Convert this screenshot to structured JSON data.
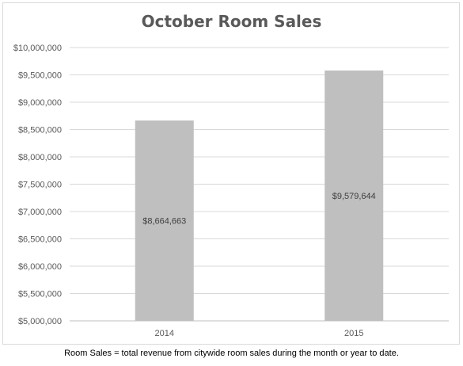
{
  "chart_data": {
    "type": "bar",
    "title": "October Room Sales",
    "categories": [
      "2014",
      "2015"
    ],
    "values": [
      8664663,
      9579644
    ],
    "value_labels": [
      "$8,664,663",
      "$9,579,644"
    ],
    "ylim": [
      5000000,
      10000000
    ],
    "yticks": [
      "$5,000,000",
      "$5,500,000",
      "$6,000,000",
      "$6,500,000",
      "$7,000,000",
      "$7,500,000",
      "$8,000,000",
      "$8,500,000",
      "$9,000,000",
      "$9,500,000",
      "$10,000,000"
    ],
    "ytick_values": [
      5000000,
      5500000,
      6000000,
      6500000,
      7000000,
      7500000,
      8000000,
      8500000,
      9000000,
      9500000,
      10000000
    ],
    "grid": true,
    "bar_color": "#bfbfbf",
    "grid_color": "#d9d9d9",
    "xlabel": "",
    "ylabel": ""
  },
  "footnote": "Room Sales = total revenue from citywide room sales during the month or year to date."
}
